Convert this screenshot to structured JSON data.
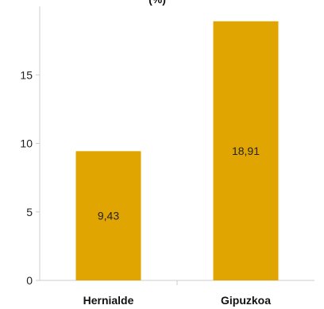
{
  "chart_data": {
    "type": "bar",
    "title": "(%)",
    "categories": [
      "Hernialde",
      "Gipuzkoa"
    ],
    "values": [
      9.43,
      18.91
    ],
    "value_labels": [
      "9,43",
      "18,91"
    ],
    "y_ticks": [
      0,
      5,
      10,
      15
    ],
    "y_tick_labels": [
      "0",
      "5",
      "10",
      "15"
    ],
    "ylim": [
      0,
      20
    ],
    "grid": false,
    "legend": "none",
    "bar_color": "#E0A500",
    "axis_color": "#CCCCCC"
  }
}
